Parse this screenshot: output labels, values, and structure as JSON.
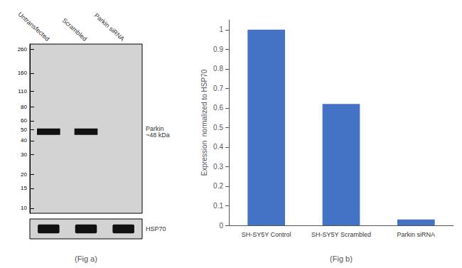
{
  "chart_data": [
    {
      "type": "blot",
      "categories": [
        "Untransfected",
        "Scrambled",
        "Parkin siRNA"
      ],
      "values": [
        48,
        48,
        null
      ],
      "color": "#111111",
      "ylim": [
        9,
        290
      ],
      "yticks": [
        260,
        160,
        110,
        80,
        60,
        50,
        40,
        30,
        20,
        15,
        10
      ],
      "log": "y",
      "grid": false,
      "xlabel": "(Fig a)",
      "annotations": [
        {
          "text": "Parkin\n~48 kDa",
          "y": 48
        },
        {
          "text": "HSP70"
        }
      ]
    },
    {
      "type": "bar",
      "categories": [
        "SH-SY5Y Control",
        "SH-SY5Y Scrambled",
        "Parkin siRNA"
      ],
      "values": [
        1.0,
        0.62,
        0.03
      ],
      "color": "#4472C4",
      "ylabel": "Expression  normalized to HSP70",
      "xlabel": "(Fig b)",
      "ylim": [
        0,
        1.05
      ],
      "yticks": [
        0,
        0.1,
        0.2,
        0.3,
        0.4,
        0.5,
        0.6,
        0.7,
        0.8,
        0.9,
        1
      ],
      "grid": false
    }
  ]
}
